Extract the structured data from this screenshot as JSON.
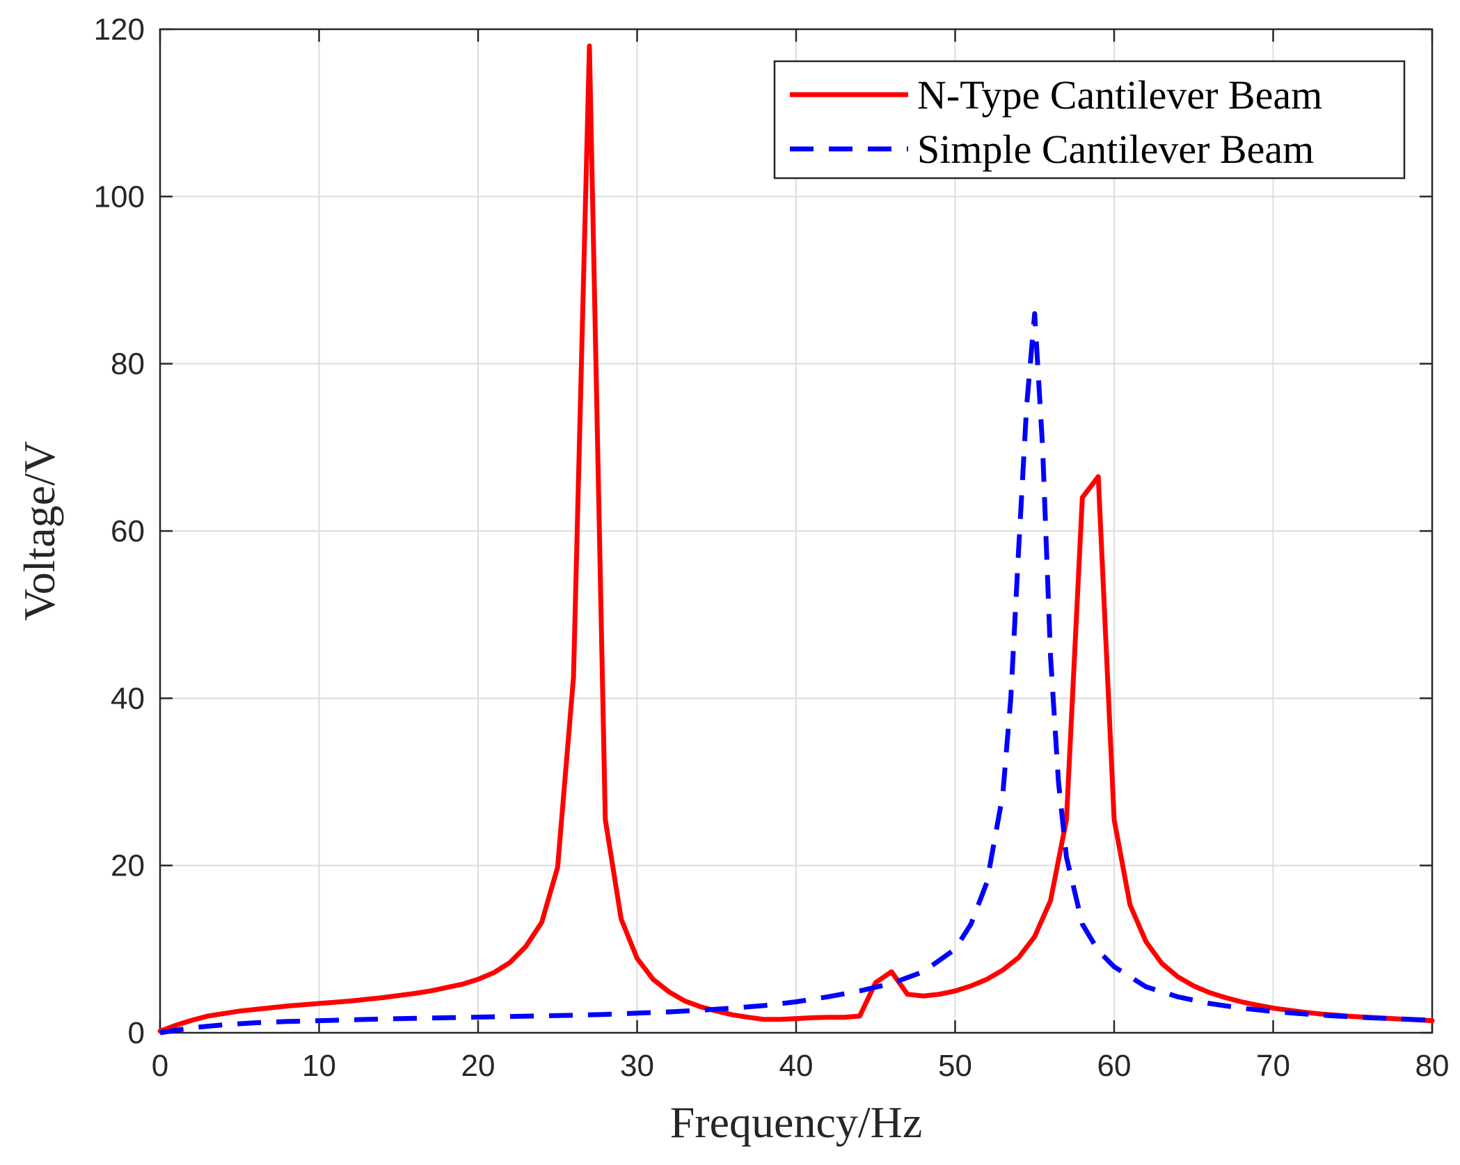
{
  "chart_data": {
    "type": "line",
    "title": "",
    "xlabel": "Frequency/Hz",
    "ylabel": "Voltage/V",
    "xlim": [
      0,
      80
    ],
    "ylim": [
      0,
      120
    ],
    "xticks": [
      0,
      10,
      20,
      30,
      40,
      50,
      60,
      70,
      80
    ],
    "yticks": [
      0,
      20,
      40,
      60,
      80,
      100,
      120
    ],
    "xtick_labels": [
      "0",
      "10",
      "20",
      "30",
      "40",
      "50",
      "60",
      "70",
      "80"
    ],
    "ytick_labels": [
      "0",
      "20",
      "40",
      "60",
      "80",
      "100",
      "120"
    ],
    "grid": true,
    "legend_position": "top-right",
    "series": [
      {
        "name": "N-Type Cantilever Beam",
        "color": "#ff0000",
        "style": "solid",
        "x": [
          0,
          1,
          2,
          3,
          4,
          5,
          6,
          7,
          8,
          9,
          10,
          11,
          12,
          13,
          14,
          15,
          16,
          17,
          18,
          19,
          20,
          21,
          22,
          23,
          24,
          25,
          26,
          27,
          28,
          29,
          30,
          31,
          32,
          33,
          34,
          35,
          36,
          37,
          38,
          39,
          40,
          41,
          42,
          43,
          44,
          45,
          46,
          47,
          48,
          49,
          50,
          51,
          52,
          53,
          54,
          55,
          56,
          57,
          58,
          59,
          60,
          61,
          62,
          63,
          64,
          65,
          66,
          67,
          68,
          69,
          70,
          71,
          72,
          73,
          74,
          75,
          76,
          77,
          78,
          79,
          80
        ],
        "y": [
          0.2,
          0.9,
          1.5,
          2.0,
          2.3,
          2.6,
          2.8,
          3.0,
          3.2,
          3.35,
          3.5,
          3.65,
          3.8,
          4.0,
          4.2,
          4.45,
          4.7,
          5.0,
          5.4,
          5.8,
          6.4,
          7.2,
          8.4,
          10.3,
          13.2,
          19.8,
          42.5,
          118,
          25.5,
          13.6,
          8.9,
          6.4,
          4.9,
          3.8,
          3.1,
          2.6,
          2.15,
          1.85,
          1.6,
          1.6,
          1.7,
          1.8,
          1.85,
          1.85,
          2.0,
          6.0,
          7.3,
          4.6,
          4.4,
          4.6,
          5.0,
          5.6,
          6.4,
          7.5,
          9.0,
          11.5,
          15.8,
          25.5,
          64.0,
          66.5,
          25.5,
          15.3,
          10.9,
          8.3,
          6.7,
          5.6,
          4.8,
          4.2,
          3.7,
          3.3,
          2.95,
          2.7,
          2.45,
          2.25,
          2.1,
          1.95,
          1.85,
          1.75,
          1.65,
          1.55,
          1.45
        ]
      },
      {
        "name": "Simple Cantilever Beam",
        "color": "#0000ff",
        "style": "dashed",
        "x": [
          0,
          2,
          4,
          6,
          8,
          10,
          12,
          14,
          16,
          18,
          20,
          22,
          24,
          26,
          28,
          30,
          32,
          34,
          36,
          38,
          40,
          42,
          44,
          46,
          48,
          50,
          51,
          52,
          53,
          53.5,
          54,
          54.5,
          55,
          55.5,
          56,
          56.5,
          57,
          58,
          59,
          60,
          62,
          64,
          66,
          68,
          70,
          72,
          74,
          76,
          78,
          80
        ],
        "y": [
          0,
          0.6,
          0.95,
          1.2,
          1.35,
          1.45,
          1.55,
          1.65,
          1.72,
          1.8,
          1.87,
          1.95,
          2.02,
          2.1,
          2.2,
          2.35,
          2.5,
          2.7,
          2.95,
          3.25,
          3.7,
          4.3,
          5.0,
          5.9,
          7.3,
          10.0,
          13.0,
          18.0,
          28.5,
          40.0,
          58.0,
          75.0,
          86.0,
          70.0,
          45.0,
          30.0,
          21.0,
          13.0,
          9.8,
          7.9,
          5.5,
          4.3,
          3.5,
          2.95,
          2.55,
          2.25,
          2.0,
          1.8,
          1.65,
          1.5
        ]
      }
    ]
  }
}
